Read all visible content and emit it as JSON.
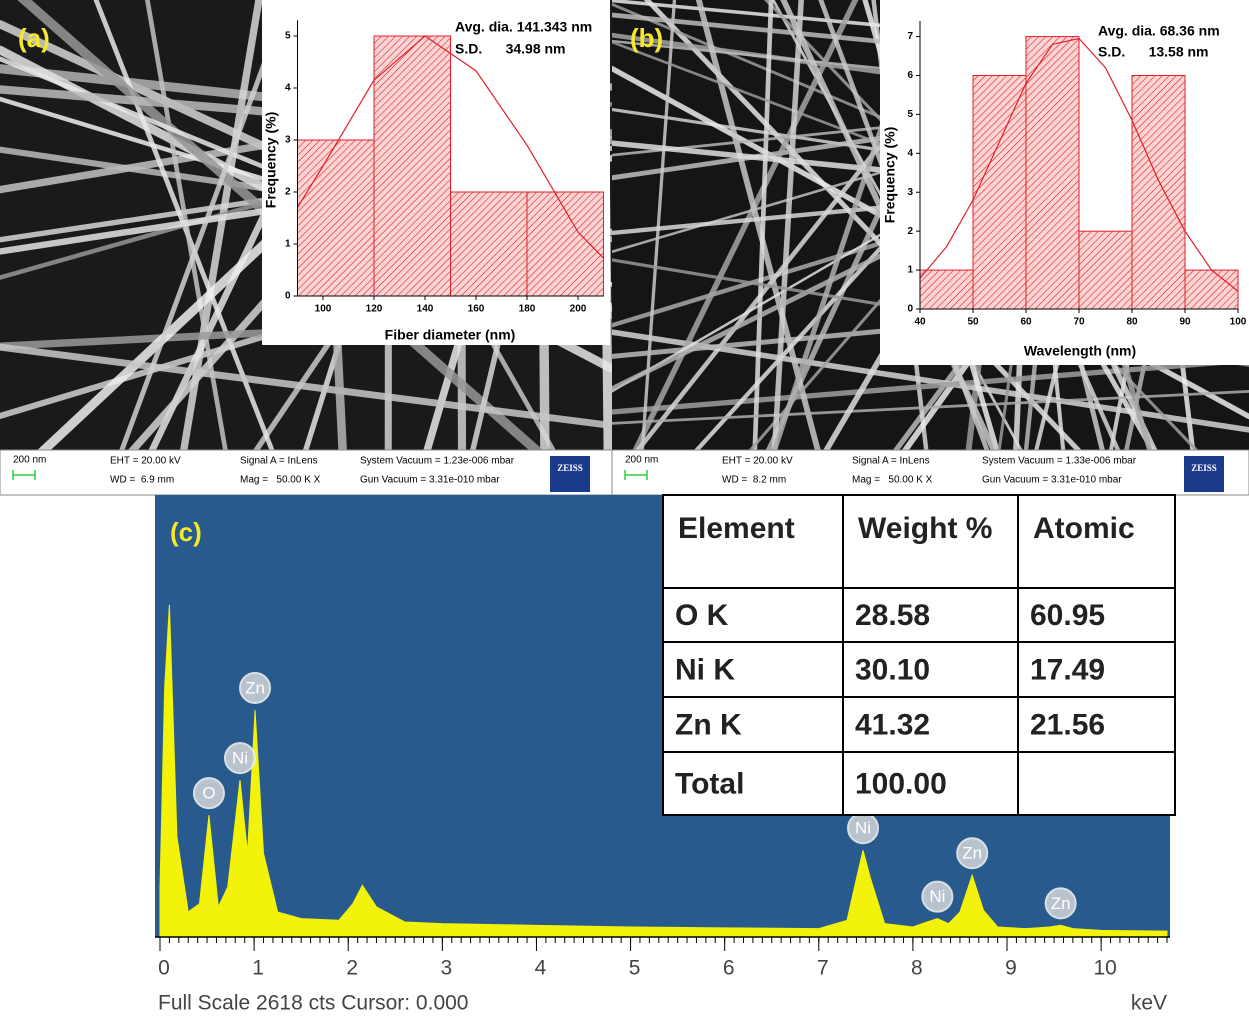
{
  "chart_data": [
    {
      "type": "histogram",
      "panel_label": "(a)",
      "xlabel": "Fiber diameter (nm)",
      "ylabel": "Frequency (%)",
      "annotations": [
        "Avg. dia. 141.343 nm",
        "S.D.      34.98 nm"
      ],
      "bins": [
        90,
        120,
        150,
        180,
        210
      ],
      "values": [
        3,
        5,
        2,
        2
      ],
      "color": "#e0202a",
      "fit": {
        "x": [
          90,
          100,
          120,
          140,
          160,
          180,
          200,
          210
        ],
        "values": [
          1.7,
          2.5,
          4.15,
          5,
          4.33,
          2.9,
          1.23,
          0.73
        ],
        "color": "#e0202a"
      },
      "xlim": [
        90,
        210
      ],
      "ylim": [
        0,
        5.3
      ],
      "xticks": [
        100,
        120,
        140,
        160,
        180,
        200
      ],
      "yticks": [
        0,
        1,
        2,
        3,
        4,
        5
      ]
    },
    {
      "type": "histogram",
      "panel_label": "(b)",
      "xlabel": "Wavelength (nm)",
      "ylabel": "Frequency (%)",
      "annotations": [
        "Avg. dia. 68.36 nm",
        "S.D.      13.58 nm"
      ],
      "bins": [
        40,
        50,
        60,
        70,
        80,
        90,
        100
      ],
      "values": [
        1,
        6,
        7,
        2,
        6,
        1
      ],
      "color": "#e0202a",
      "fit": {
        "x": [
          40,
          45,
          50,
          55,
          60,
          65,
          70,
          75,
          80,
          85,
          90,
          95,
          100
        ],
        "values": [
          0.79,
          1.6,
          2.8,
          4.3,
          5.8,
          6.8,
          6.95,
          6.2,
          4.85,
          3.3,
          2.0,
          1.0,
          0.46
        ],
        "color": "#e0202a"
      },
      "xlim": [
        40,
        100
      ],
      "ylim": [
        0,
        7.4
      ],
      "xticks": [
        40,
        50,
        60,
        70,
        80,
        90,
        100
      ],
      "yticks": [
        0,
        1,
        2,
        3,
        4,
        5,
        6,
        7
      ]
    },
    {
      "type": "area",
      "panel_label": "(c)",
      "footer": "Full Scale 2618 cts Cursor: 0.000",
      "xlabel": "keV",
      "color": "#f2f20a",
      "x": [
        0,
        0.05,
        0.1,
        0.18,
        0.3,
        0.42,
        0.52,
        0.62,
        0.72,
        0.85,
        0.93,
        1.01,
        1.1,
        1.25,
        1.5,
        1.9,
        2.05,
        2.15,
        2.3,
        2.6,
        3,
        4,
        5,
        6,
        7,
        7.3,
        7.4,
        7.47,
        7.55,
        7.7,
        8,
        8.15,
        8.26,
        8.38,
        8.5,
        8.63,
        8.75,
        8.9,
        9.2,
        9.45,
        9.57,
        9.7,
        10,
        10.7
      ],
      "values": [
        300,
        1500,
        1990,
        600,
        150,
        200,
        730,
        180,
        300,
        940,
        500,
        1360,
        500,
        150,
        110,
        100,
        200,
        310,
        180,
        90,
        80,
        70,
        60,
        55,
        50,
        100,
        350,
        520,
        350,
        80,
        60,
        90,
        110,
        80,
        150,
        370,
        160,
        60,
        50,
        60,
        70,
        50,
        40,
        35
      ],
      "peak_labels": [
        {
          "label": "O",
          "x": 0.52
        },
        {
          "label": "Ni",
          "x": 0.85
        },
        {
          "label": "Zn",
          "x": 1.01
        },
        {
          "label": "Ni",
          "x": 7.47
        },
        {
          "label": "Ni",
          "x": 8.26
        },
        {
          "label": "Zn",
          "x": 8.63
        },
        {
          "label": "Zn",
          "x": 9.57
        }
      ],
      "xlim": [
        0,
        10.7
      ],
      "ylim": [
        0,
        2618
      ],
      "xticks": [
        0,
        1,
        2,
        3,
        4,
        5,
        6,
        7,
        8,
        9,
        10
      ]
    }
  ],
  "sem_info": [
    {
      "scale": "200 nm",
      "eht": "EHT = 20.00 kV",
      "wd": "WD =  6.9 mm",
      "signal": "Signal A = InLens",
      "mag": "Mag =   50.00 K X",
      "system_vacuum": "System Vacuum = 1.23e-006 mbar",
      "gun_vacuum": "Gun Vacuum = 3.31e-010 mbar",
      "logo": "ZEISS"
    },
    {
      "scale": "200 nm",
      "eht": "EHT = 20.00 kV",
      "wd": "WD =  8.2 mm",
      "signal": "Signal A = InLens",
      "mag": "Mag =   50.00 K X",
      "system_vacuum": "System Vacuum = 1.33e-006 mbar",
      "gun_vacuum": "Gun Vacuum = 3.31e-010 mbar",
      "logo": "ZEISS"
    }
  ],
  "table": {
    "header": [
      "Element",
      "Weight %",
      "Atomic"
    ],
    "rows": [
      [
        "O K",
        "28.58",
        "60.95"
      ],
      [
        "Ni K",
        "30.10",
        "17.49"
      ],
      [
        "Zn K",
        "41.32",
        "21.56"
      ],
      [
        "Total",
        "100.00"
      ]
    ]
  }
}
